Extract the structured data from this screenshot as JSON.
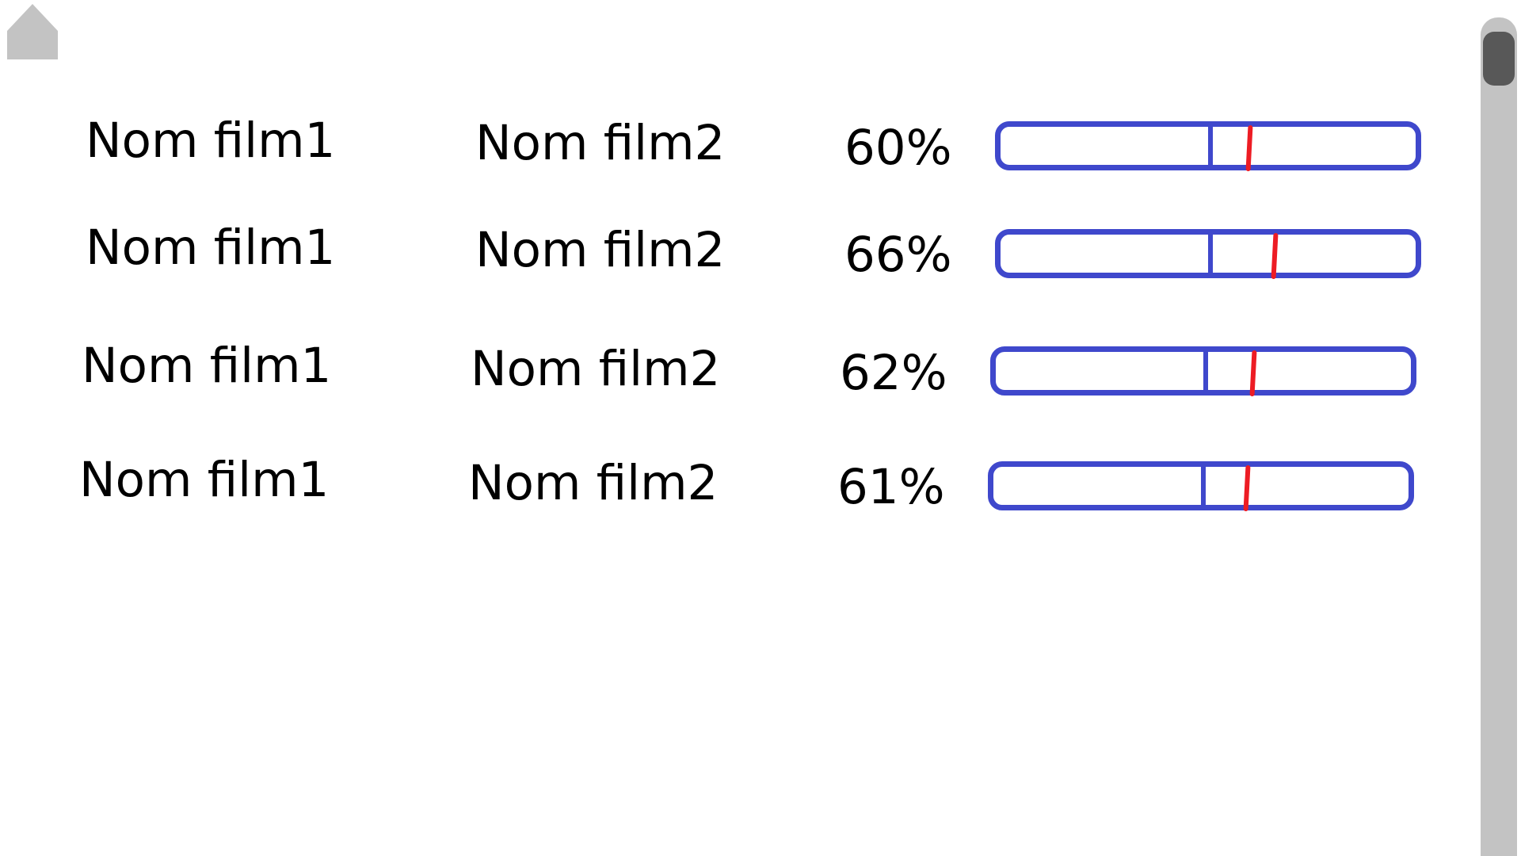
{
  "colors": {
    "gauge_frame": "#3f48cc",
    "gauge_needle": "#ed1c24",
    "home_icon": "#c3c3c3",
    "scrollbar_track": "#c3c3c3",
    "scrollbar_thumb": "#585858"
  },
  "home": {
    "icon": "home-icon"
  },
  "rows": [
    {
      "film1": "Nom film1",
      "film2": "Nom film2",
      "percent_label": "60%",
      "percent_value": 60
    },
    {
      "film1": "Nom film1",
      "film2": "Nom film2",
      "percent_label": "66%",
      "percent_value": 66
    },
    {
      "film1": "Nom film1",
      "film2": "Nom film2",
      "percent_label": "62%",
      "percent_value": 62
    },
    {
      "film1": "Nom film1",
      "film2": "Nom film2",
      "percent_label": "61%",
      "percent_value": 61
    }
  ]
}
